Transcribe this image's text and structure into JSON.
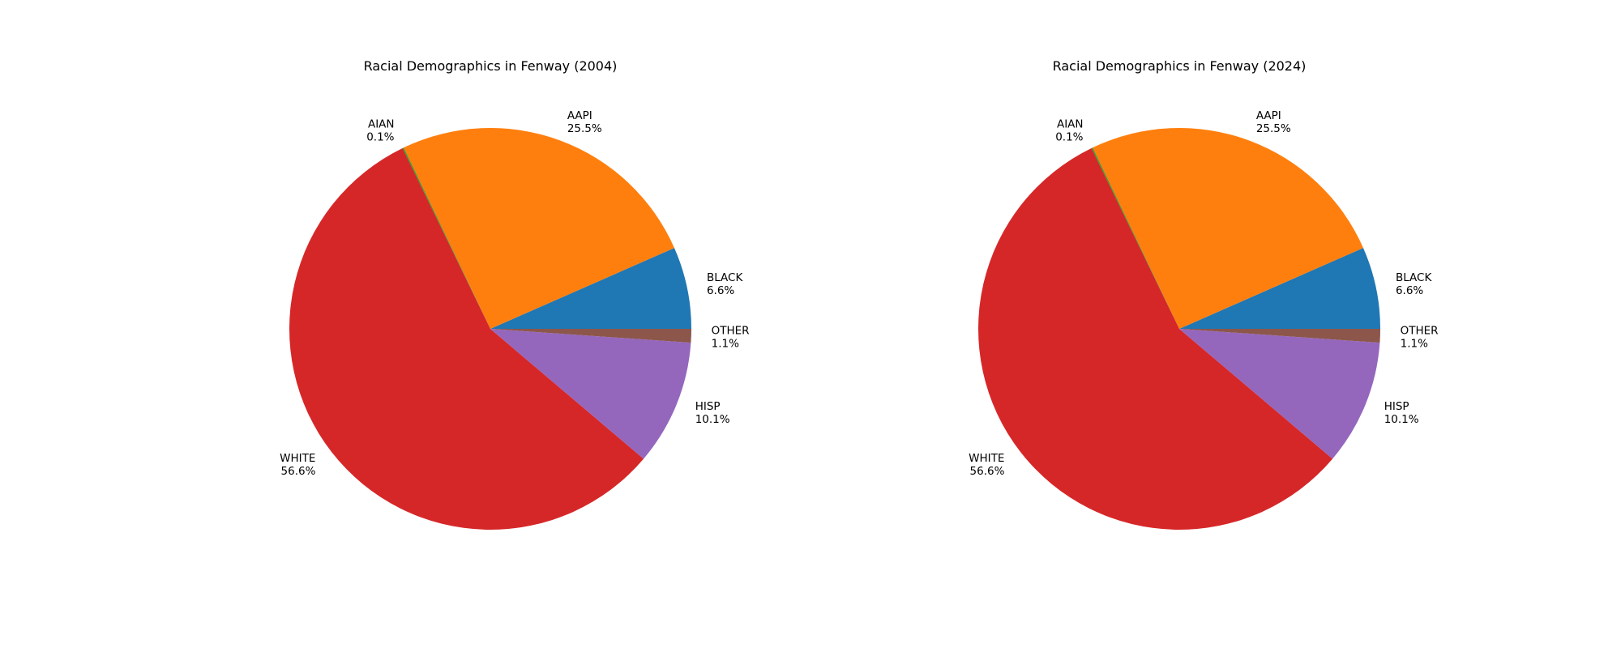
{
  "chart_data": [
    {
      "type": "pie",
      "title": "Racial Demographics in Fenway (2004)",
      "slices": [
        {
          "label": "BLACK",
          "pct_text": "6.6%",
          "value": 6.6,
          "color": "#1f77b4"
        },
        {
          "label": "AAPI",
          "pct_text": "25.5%",
          "value": 25.5,
          "color": "#ff7f0e"
        },
        {
          "label": "AIAN",
          "pct_text": "0.1%",
          "value": 0.1,
          "color": "#2ca02c"
        },
        {
          "label": "WHITE",
          "pct_text": "56.6%",
          "value": 56.6,
          "color": "#d62728"
        },
        {
          "label": "HISP",
          "pct_text": "10.1%",
          "value": 10.1,
          "color": "#9467bd"
        },
        {
          "label": "OTHER",
          "pct_text": "1.1%",
          "value": 1.1,
          "color": "#8c564b"
        }
      ]
    },
    {
      "type": "pie",
      "title": "Racial Demographics in Fenway (2024)",
      "slices": [
        {
          "label": "BLACK",
          "pct_text": "6.6%",
          "value": 6.6,
          "color": "#1f77b4"
        },
        {
          "label": "AAPI",
          "pct_text": "25.5%",
          "value": 25.5,
          "color": "#ff7f0e"
        },
        {
          "label": "AIAN",
          "pct_text": "0.1%",
          "value": 0.1,
          "color": "#2ca02c"
        },
        {
          "label": "WHITE",
          "pct_text": "56.6%",
          "value": 56.6,
          "color": "#d62728"
        },
        {
          "label": "HISP",
          "pct_text": "10.1%",
          "value": 10.1,
          "color": "#9467bd"
        },
        {
          "label": "OTHER",
          "pct_text": "1.1%",
          "value": 1.1,
          "color": "#8c564b"
        }
      ]
    }
  ]
}
